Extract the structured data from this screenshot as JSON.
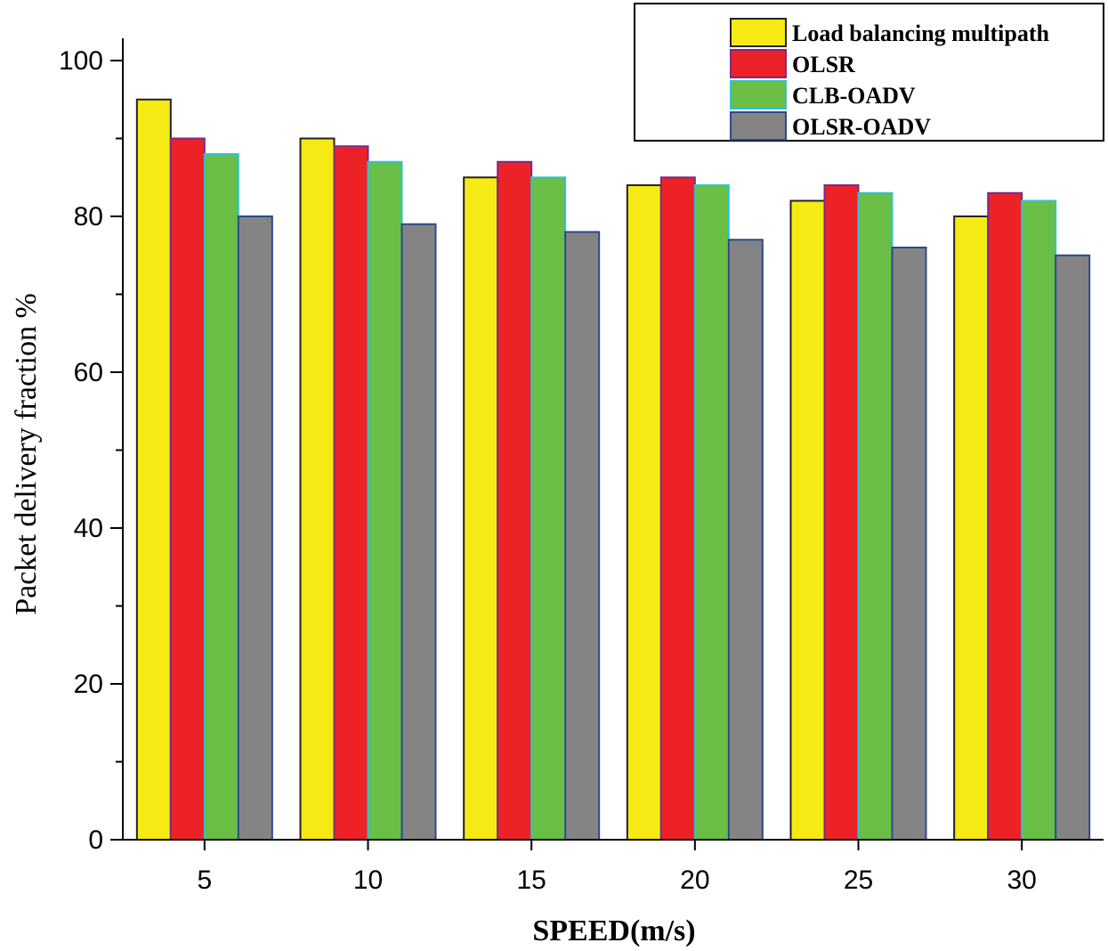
{
  "chart_data": {
    "type": "bar",
    "xlabel": "SPEED(m/s)",
    "ylabel": "Packet delivery fraction %",
    "ylim": [
      0,
      100
    ],
    "yticks": [
      0,
      20,
      40,
      60,
      80,
      100
    ],
    "categories": [
      "5",
      "10",
      "15",
      "20",
      "25",
      "30"
    ],
    "grid": false,
    "legend_position": "top-right",
    "series": [
      {
        "name": "Load balancing multipath",
        "color": "#f5ea14",
        "stroke": "#222222",
        "values": [
          95,
          90,
          85,
          84,
          82,
          80
        ]
      },
      {
        "name": "OLSR",
        "color": "#ec2227",
        "stroke": "#7a2a8a",
        "values": [
          90,
          89,
          87,
          85,
          84,
          83
        ]
      },
      {
        "name": "CLB-OADV",
        "color": "#6abd45",
        "stroke": "#2ec4d6",
        "values": [
          88,
          87,
          85,
          84,
          83,
          82
        ]
      },
      {
        "name": "OLSR-OADV",
        "color": "#848484",
        "stroke": "#2b4a8a",
        "values": [
          80,
          79,
          78,
          77,
          76,
          75
        ]
      }
    ]
  }
}
